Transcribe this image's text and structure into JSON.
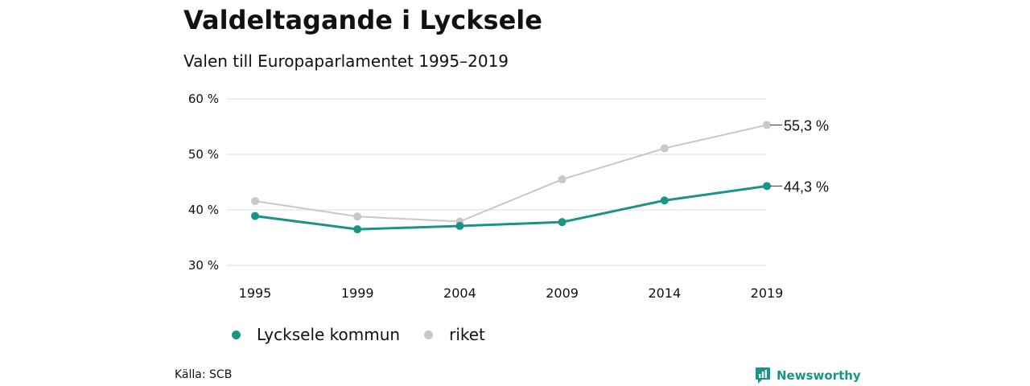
{
  "header": {
    "title": "Valdeltagande i Lycksele",
    "subtitle": "Valen till Europaparlamentet 1995–2019"
  },
  "colors": {
    "lycksele": "#1a9484",
    "riket": "#c8c8c8",
    "grid": "#dddddd",
    "brand": "#1a9484"
  },
  "chart_data": {
    "type": "line",
    "categories": [
      "1995",
      "1999",
      "2004",
      "2009",
      "2014",
      "2019"
    ],
    "yticks": [
      "30 %",
      "40 %",
      "50 %",
      "60 %"
    ],
    "ylim": [
      30,
      60
    ],
    "grid": true,
    "legend_position": "bottom-left",
    "series": [
      {
        "name": "Lycksele kommun",
        "values": [
          38.9,
          36.5,
          37.1,
          37.8,
          41.7,
          44.3
        ],
        "end_label": "44,3 %"
      },
      {
        "name": "riket",
        "values": [
          41.6,
          38.8,
          37.9,
          45.5,
          51.1,
          55.3
        ],
        "end_label": "55,3 %"
      }
    ]
  },
  "legend": {
    "items": [
      "Lycksele kommun",
      "riket"
    ]
  },
  "footer": {
    "source": "Källa: SCB",
    "brand": "Newsworthy"
  }
}
